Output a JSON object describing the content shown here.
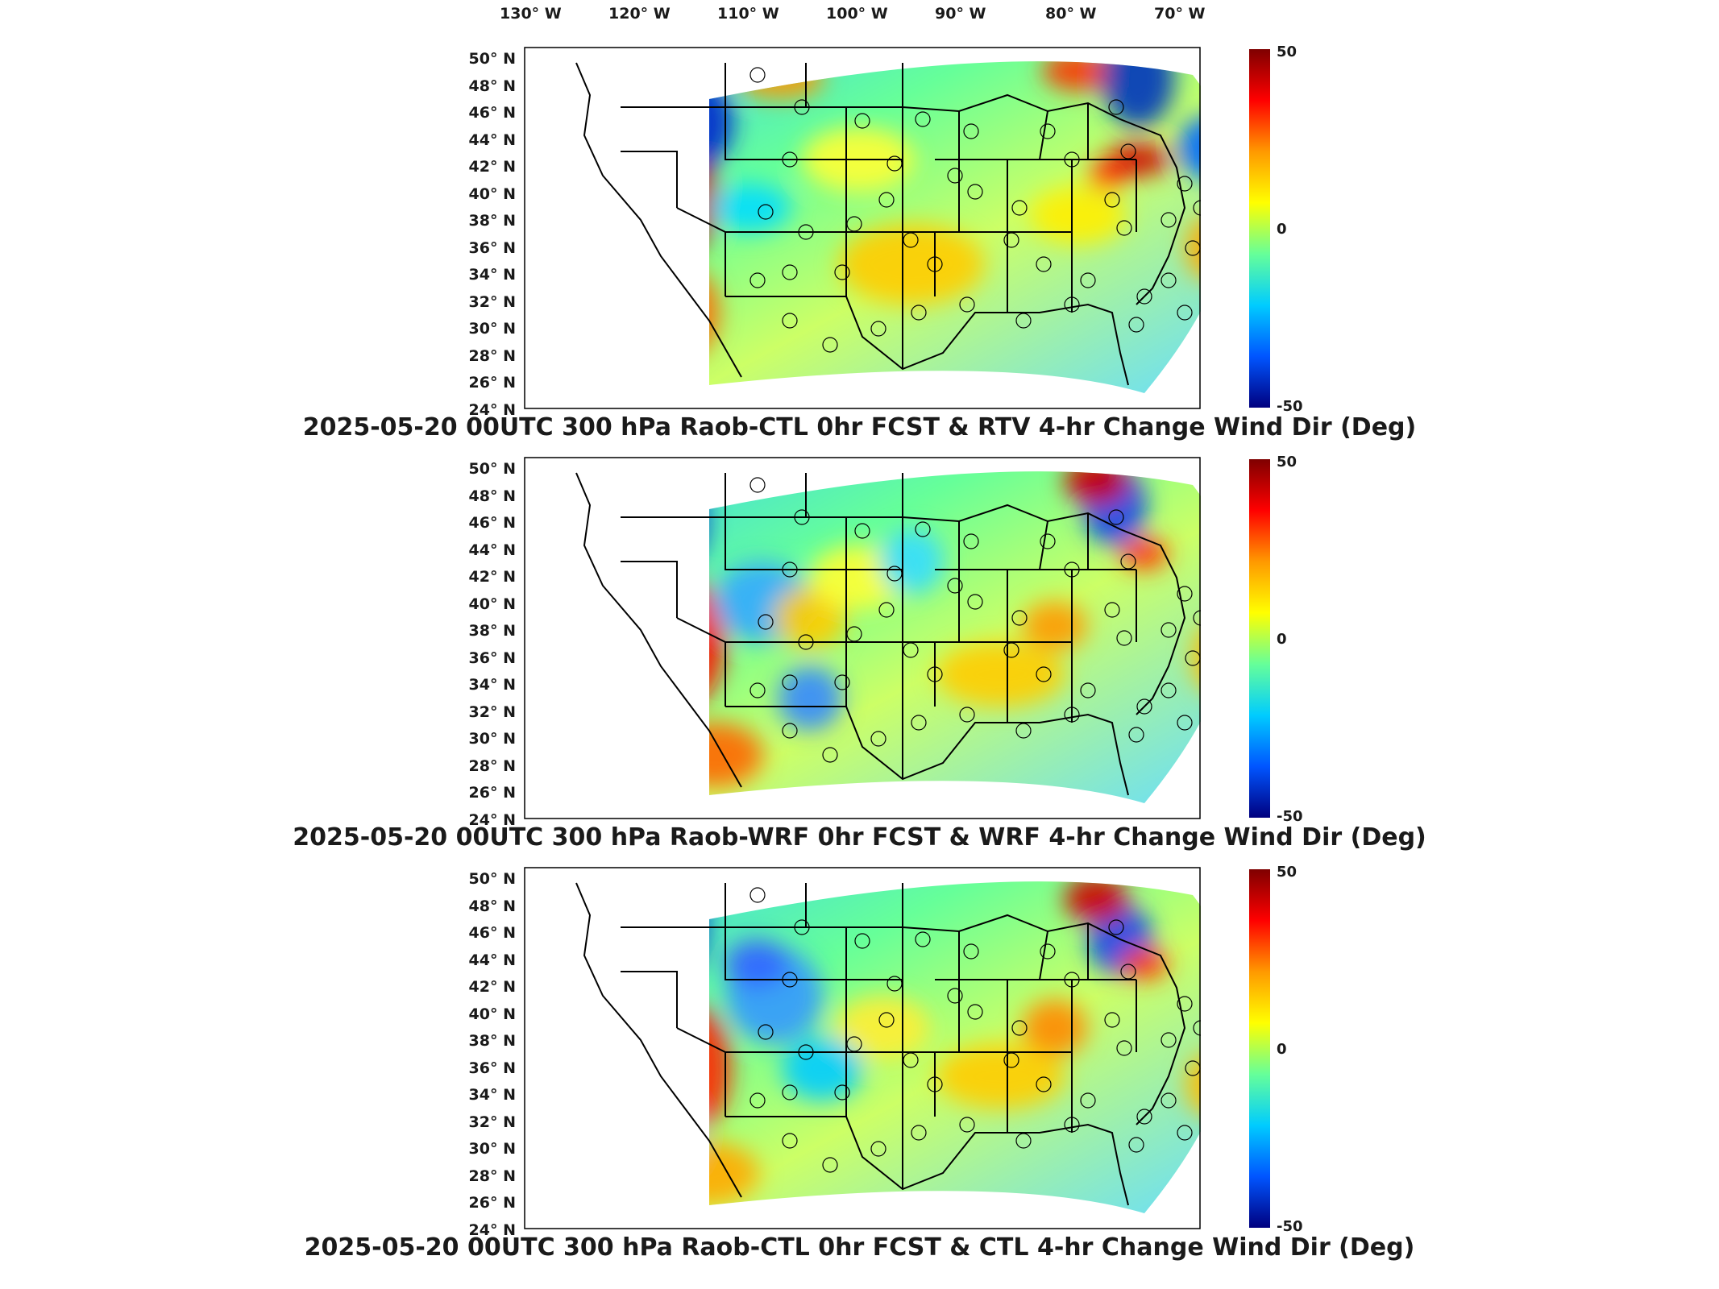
{
  "longitude_labels": [
    "130° W",
    "120° W",
    "110° W",
    "100° W",
    "90° W",
    "80° W",
    "70° W"
  ],
  "latitude_labels": [
    "50° N",
    "48° N",
    "46° N",
    "44° N",
    "42° N",
    "40° N",
    "38° N",
    "36° N",
    "34° N",
    "32° N",
    "30° N",
    "28° N",
    "26° N",
    "24° N"
  ],
  "colorbar": {
    "max_label": "50",
    "mid_label": "0",
    "min_label": "-50",
    "colors": [
      "#7f0000",
      "#ff0000",
      "#ff9900",
      "#ffff00",
      "#66ff99",
      "#00ccff",
      "#0055ff",
      "#00007f"
    ]
  },
  "panels": [
    {
      "title": "2025-05-20 00UTC 300 hPa Raob-CTL 0hr FCST & RTV 4-hr Change Wind Dir (Deg)"
    },
    {
      "title": "2025-05-20 00UTC 300 hPa Raob-WRF 0hr FCST & WRF 4-hr Change Wind Dir (Deg)"
    },
    {
      "title": "2025-05-20 00UTC 300 hPa Raob-CTL 0hr FCST & CTL 4-hr Change Wind Dir (Deg)"
    }
  ]
}
